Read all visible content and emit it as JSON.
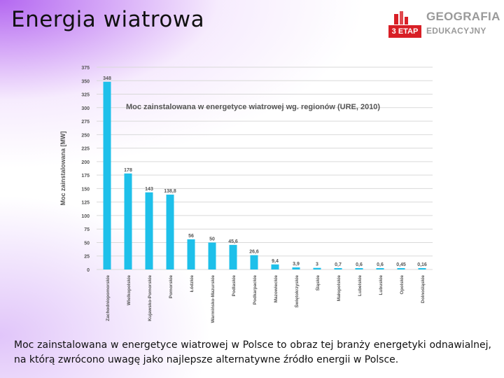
{
  "slide": {
    "title": "Energia wiatrowa",
    "caption": "Moc zainstalowana w energetyce wiatrowej w Polsce to obraz tej branży energetyki odnawialnej, na którą zwrócono uwagę jako najlepsze alternatywne źródło energii w Polsce."
  },
  "logo": {
    "badge": "3 ETAP",
    "line1": "GEOGRAFIA",
    "line2": "EDUKACYJNY"
  },
  "colors": {
    "bar": "#1ec0ea",
    "grid": "#d9d9d9",
    "accent_red": "#d81f26",
    "axis_text": "#555555"
  },
  "chart_data": {
    "type": "bar",
    "title": "Moc zainstalowana w energetyce wiatrowej wg. regionów (URE, 2010)",
    "ylabel": "Moc zainstalowana [MW]",
    "xlabel": "",
    "ylim": [
      0,
      375
    ],
    "yticks": [
      0,
      25,
      50,
      75,
      100,
      125,
      150,
      175,
      200,
      225,
      250,
      275,
      300,
      325,
      350,
      375
    ],
    "grid": true,
    "categories": [
      "Zachodniopomorskie",
      "Wielkopolskie",
      "Kujawsko-Pomorskie",
      "Pomorskie",
      "Łódzkie",
      "Warmińsko-Mazurskie",
      "Podlaskie",
      "Podkarpackie",
      "Mazowieckie",
      "Świętokrzyskie",
      "Śląskie",
      "Małopolskie",
      "Lubelskie",
      "Lubuskie",
      "Opolskie",
      "Dolnośląskie"
    ],
    "values": [
      348,
      178,
      143,
      138.8,
      56,
      50,
      45.6,
      26.6,
      9.4,
      3.9,
      3,
      0.7,
      0.6,
      0.6,
      0.45,
      0.16
    ],
    "value_labels": [
      "348",
      "178",
      "143",
      "138,8",
      "56",
      "50",
      "45,6",
      "26,6",
      "9,4",
      "3,9",
      "3",
      "0,7",
      "0,6",
      "0,6",
      "0,45",
      "0,16"
    ]
  }
}
